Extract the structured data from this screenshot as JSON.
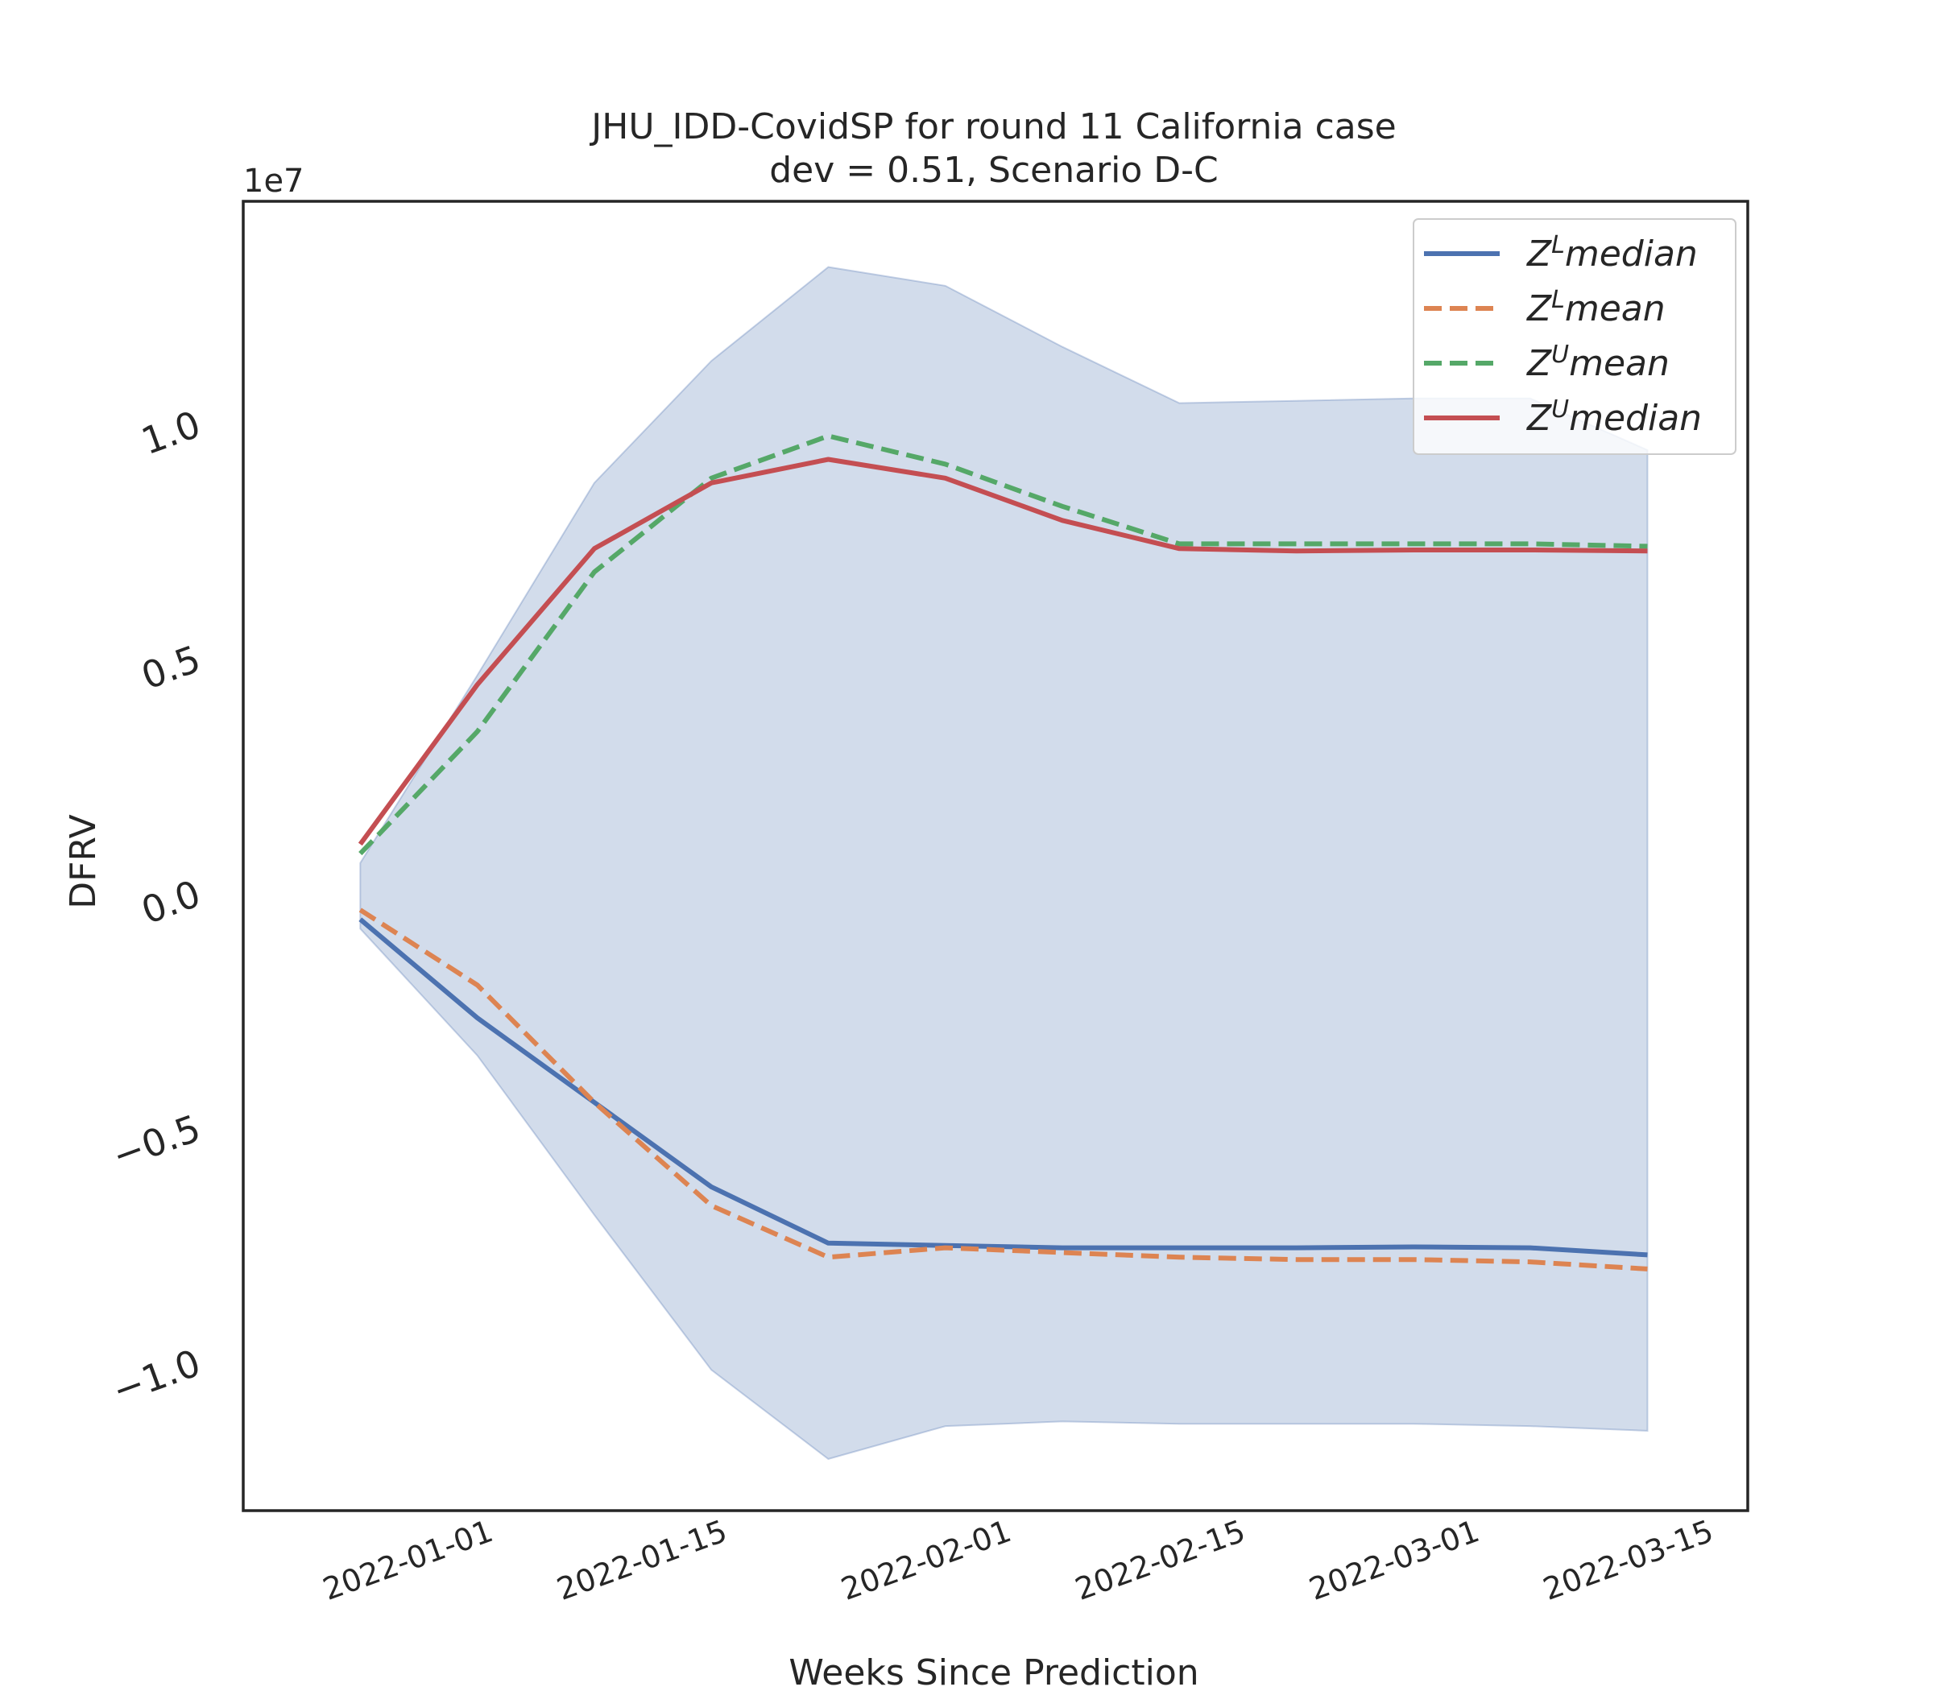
{
  "chart_data": {
    "type": "line",
    "title_line1": "JHU_IDD-CovidSP for round 11 California case",
    "title_line2": "dev = 0.51, Scenario D-C",
    "xlabel": "Weeks Since Prediction",
    "ylabel": "DFRV",
    "y_offset_label": "1e7",
    "y_scale": 10000000,
    "ylim": [
      -13.2,
      14.7
    ],
    "xlim": [
      "2021-12-18",
      "2022-03-18"
    ],
    "yticks": [
      -10,
      -5,
      0,
      5,
      10
    ],
    "ytick_labels": [
      "−1.0",
      "−0.5",
      "0.0",
      "0.5",
      "1.0"
    ],
    "xticks": [
      "2022-01-01",
      "2022-01-15",
      "2022-02-01",
      "2022-02-15",
      "2022-03-01",
      "2022-03-15"
    ],
    "xtick_labels": [
      "2022-01-01",
      "2022-01-15",
      "2022-02-01",
      "2022-02-15",
      "2022-03-01",
      "2022-03-15"
    ],
    "x": [
      "2021-12-25",
      "2022-01-01",
      "2022-01-08",
      "2022-01-15",
      "2022-01-22",
      "2022-01-29",
      "2022-02-05",
      "2022-02-12",
      "2022-02-19",
      "2022-02-26",
      "2022-03-05",
      "2022-03-12"
    ],
    "band": {
      "upper": [
        0.6,
        4.6,
        8.7,
        11.3,
        13.3,
        12.9,
        11.6,
        10.4,
        10.45,
        10.5,
        10.5,
        9.4
      ],
      "lower": [
        -0.8,
        -3.5,
        -6.9,
        -10.2,
        -12.1,
        -11.4,
        -11.3,
        -11.35,
        -11.35,
        -11.35,
        -11.4,
        -11.5
      ]
    },
    "series": [
      {
        "name": "median",
        "name_base": "Z",
        "name_sup": "L",
        "style": "solid",
        "color": "#4c72b0",
        "values": [
          -0.6,
          -2.7,
          -4.5,
          -6.3,
          -7.5,
          -7.55,
          -7.6,
          -7.6,
          -7.6,
          -7.58,
          -7.6,
          -7.75
        ]
      },
      {
        "name": "mean",
        "name_base": "Z",
        "name_sup": "L",
        "style": "dashed",
        "color": "#dd8452",
        "values": [
          -0.4,
          -2.0,
          -4.5,
          -6.7,
          -7.8,
          -7.6,
          -7.7,
          -7.8,
          -7.85,
          -7.85,
          -7.9,
          -8.05
        ]
      },
      {
        "name": "mean",
        "name_base": "Z",
        "name_sup": "U",
        "style": "dashed",
        "color": "#55a868",
        "values": [
          0.8,
          3.4,
          6.8,
          8.8,
          9.7,
          9.1,
          8.2,
          7.4,
          7.4,
          7.4,
          7.4,
          7.35
        ]
      },
      {
        "name": "median",
        "name_base": "Z",
        "name_sup": "U",
        "style": "solid",
        "color": "#c44e52",
        "values": [
          1.0,
          4.4,
          7.3,
          8.7,
          9.2,
          8.8,
          7.9,
          7.3,
          7.25,
          7.27,
          7.27,
          7.25
        ]
      }
    ],
    "band_color": "#4c72b0",
    "legend_position": "upper right",
    "grid": false
  }
}
